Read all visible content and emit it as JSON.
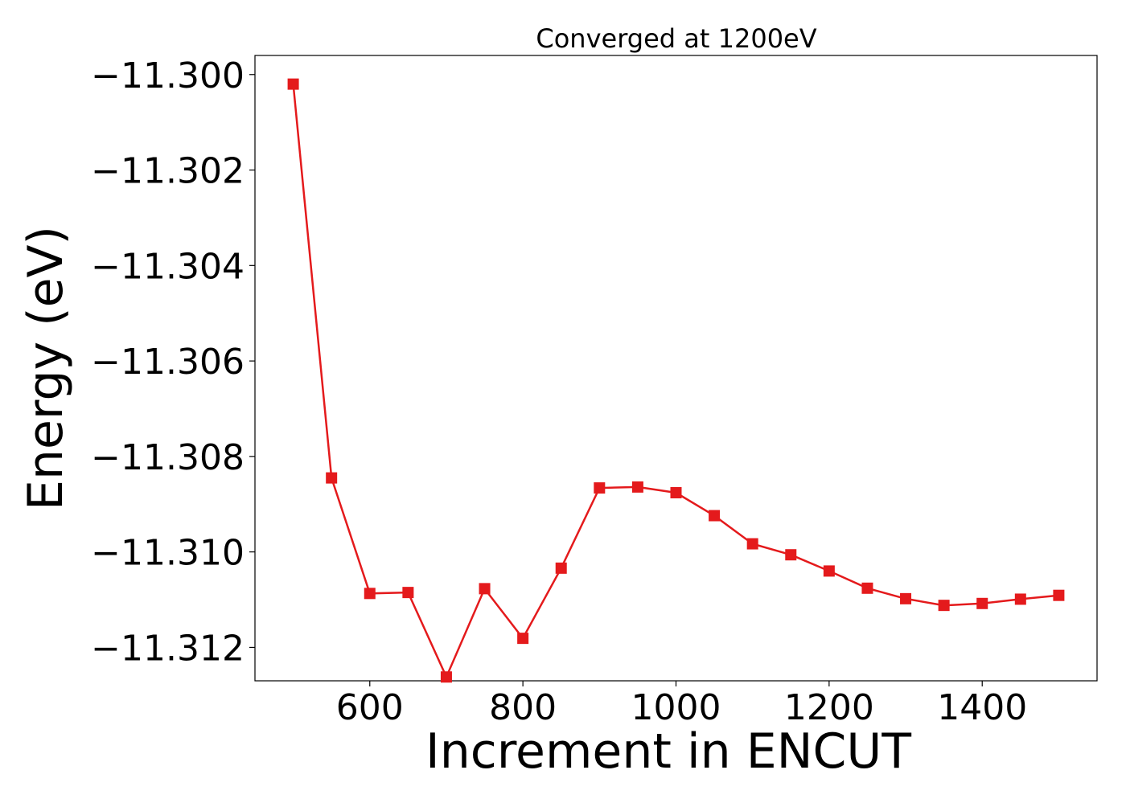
{
  "chart_data": {
    "type": "line",
    "title": "Converged at 1200eV",
    "xlabel": "Increment in ENCUT",
    "ylabel": "Energy (eV)",
    "xlim": [
      450,
      1550
    ],
    "ylim": [
      -11.3127,
      -11.2996
    ],
    "x_ticks": [
      600,
      800,
      1000,
      1200,
      1400
    ],
    "x_tick_labels": [
      "600",
      "800",
      "1000",
      "1200",
      "1400"
    ],
    "y_ticks": [
      -11.3,
      -11.302,
      -11.304,
      -11.306,
      -11.308,
      -11.31,
      -11.312
    ],
    "y_tick_labels": [
      "−11.300",
      "−11.302",
      "−11.304",
      "−11.306",
      "−11.308",
      "−11.310",
      "−11.312"
    ],
    "grid": false,
    "series": [
      {
        "color": "#e41a1c",
        "marker": "square",
        "x": [
          500,
          550,
          600,
          650,
          700,
          750,
          800,
          850,
          900,
          950,
          1000,
          1050,
          1100,
          1150,
          1200,
          1250,
          1300,
          1350,
          1400,
          1450,
          1500
        ],
        "y": [
          -11.3002,
          -11.30845,
          -11.31087,
          -11.31085,
          -11.31262,
          -11.31077,
          -11.31181,
          -11.31034,
          -11.30866,
          -11.30864,
          -11.30876,
          -11.30924,
          -11.30983,
          -11.31006,
          -11.3104,
          -11.31076,
          -11.31098,
          -11.31112,
          -11.31108,
          -11.31099,
          -11.31091
        ]
      }
    ]
  }
}
